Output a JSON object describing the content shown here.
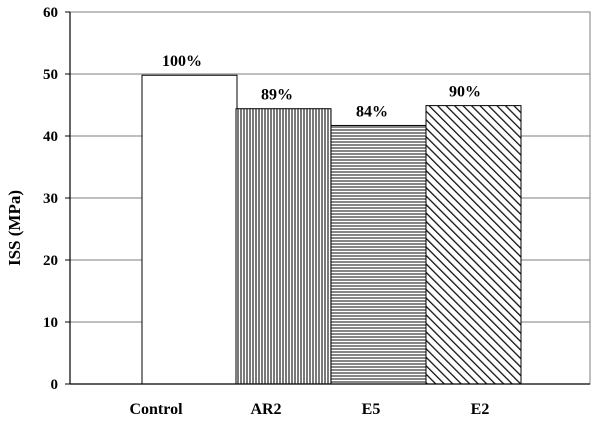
{
  "chart_data": {
    "type": "bar",
    "categories": [
      "Control",
      "AR2",
      "E5",
      "E2"
    ],
    "values": [
      49.8,
      44.4,
      41.7,
      44.9
    ],
    "labels": [
      "100%",
      "89%",
      "84%",
      "90%"
    ],
    "patterns": [
      "none",
      "vertical-lines",
      "horizontal-lines",
      "diagonal-lines"
    ],
    "ylabel": "ISS (MPa)",
    "xlabel": "",
    "ylim": [
      0,
      60
    ],
    "yticks": [
      0,
      10,
      20,
      30,
      40,
      50,
      60
    ],
    "grid": true,
    "colors": {
      "bar_fill": "#ffffff",
      "stroke": "#000000",
      "grid": "#7f7f7f"
    }
  }
}
